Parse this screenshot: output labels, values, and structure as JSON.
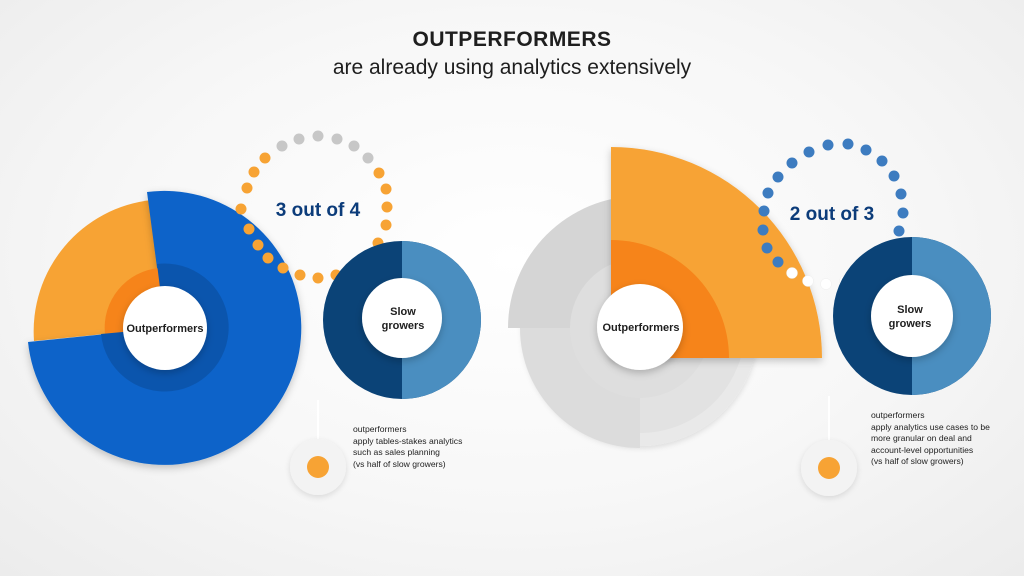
{
  "header": {
    "title": "OUTPERFORMERS",
    "subtitle": "are already using analytics extensively"
  },
  "panels": [
    {
      "ratio_text": "3 out of 4",
      "outperformers_label": "Outperformers",
      "slow_growers_label_1": "Slow",
      "slow_growers_label_2": "growers",
      "note_lines": [
        "outperformers",
        "apply tables-stakes analytics",
        "such as sales planning",
        "(vs half of slow growers)"
      ],
      "outperformers_share": 0.75,
      "slow_growers_share": 0.5
    },
    {
      "ratio_text": "2 out of 3",
      "outperformers_label": "Outperformers",
      "slow_growers_label_1": "Slow",
      "slow_growers_label_2": "growers",
      "note_lines": [
        "outperformers",
        "apply analytics use cases to be",
        "more granular on deal and",
        "account-level opportunities",
        "(vs half of slow growers)"
      ],
      "outperformers_share": 0.6667,
      "slow_growers_share": 0.5
    }
  ],
  "colors": {
    "blue": "#0a63c9",
    "orange": "#f7a334",
    "orange_dark": "#f6841a",
    "navy": "#0b4377",
    "light_blue": "#4a8ec0",
    "grey": "#d5d5d5",
    "dot_grey": "#c7c7c7",
    "dot_blue": "#3d7cc0"
  }
}
